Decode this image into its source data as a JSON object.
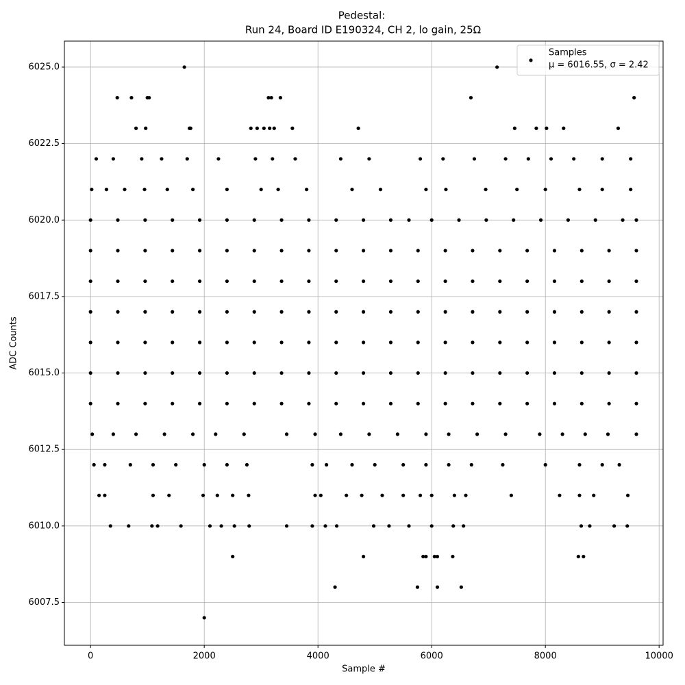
{
  "chart_data": {
    "type": "scatter",
    "title": "Pedestal:",
    "subtitle": "Run 24, Board ID E190324, CH 2, lo gain, 25Ω",
    "x_label": "Sample #",
    "y_label": "ADC Counts",
    "annotation": "μ = 6016.55, σ = 2.42",
    "legend_position": "upper right",
    "grid": true,
    "xlim": [
      -460,
      10070
    ],
    "ylim": [
      6006.1,
      6025.85
    ],
    "xticks": [
      0,
      2000,
      4000,
      6000,
      8000,
      10000
    ],
    "yticks": [
      6007.5,
      {
        "value": 6010,
        "label": "6010.0"
      },
      6012.5,
      {
        "value": 6015,
        "label": "6015.0"
      },
      6017.5,
      {
        "value": 6020,
        "label": "6020.0"
      },
      6022.5,
      {
        "value": 6025,
        "label": "6025.0"
      }
    ],
    "x": [
      1650,
      7150,
      470,
      720,
      1000,
      1030,
      3130,
      3180,
      3340,
      6690,
      9560,
      800,
      970,
      1740,
      1760,
      2820,
      2930,
      3050,
      3150,
      3230,
      3550,
      4710,
      7460,
      7840,
      8020,
      8320,
      9280,
      100,
      400,
      900,
      1250,
      1700,
      2250,
      2900,
      3200,
      3600,
      4400,
      4900,
      5800,
      6200,
      6750,
      7300,
      7700,
      8100,
      8500,
      9000,
      9500,
      20,
      280,
      600,
      950,
      1350,
      1800,
      2400,
      3000,
      3300,
      3800,
      4600,
      5100,
      5900,
      6250,
      6950,
      7500,
      8000,
      8600,
      9000,
      9500,
      0,
      480,
      960,
      1440,
      1920,
      2400,
      2880,
      3360,
      3840,
      4320,
      4800,
      5280,
      5600,
      6000,
      6480,
      6960,
      7440,
      7920,
      8400,
      8880,
      9360,
      9600,
      0,
      480,
      960,
      1440,
      1920,
      2400,
      2880,
      3360,
      3840,
      4320,
      4800,
      5280,
      5760,
      6240,
      6720,
      7200,
      7680,
      8160,
      8640,
      9120,
      9600,
      0,
      480,
      960,
      1440,
      1920,
      2400,
      2880,
      3360,
      3840,
      4320,
      4800,
      5280,
      5760,
      6240,
      6720,
      7200,
      7680,
      8160,
      8640,
      9120,
      9600,
      0,
      480,
      960,
      1440,
      1920,
      2400,
      2880,
      3360,
      3840,
      4320,
      4800,
      5280,
      5760,
      6240,
      6720,
      7200,
      7680,
      8160,
      8640,
      9120,
      9600,
      0,
      480,
      960,
      1440,
      1920,
      2400,
      2880,
      3360,
      3840,
      4320,
      4800,
      5280,
      5760,
      6240,
      6720,
      7200,
      7680,
      8160,
      8640,
      9120,
      9600,
      0,
      480,
      960,
      1440,
      1920,
      2400,
      2880,
      3360,
      3840,
      4320,
      4800,
      5280,
      5760,
      6240,
      6720,
      7200,
      7680,
      8160,
      8640,
      9120,
      9600,
      0,
      480,
      960,
      1440,
      1920,
      2400,
      2880,
      3360,
      3840,
      4320,
      4800,
      5280,
      5760,
      6240,
      6720,
      7200,
      7680,
      8160,
      8640,
      9120,
      9600,
      30,
      400,
      800,
      1300,
      1800,
      2200,
      2700,
      3450,
      3950,
      4400,
      4900,
      5400,
      5900,
      6300,
      6800,
      7300,
      7900,
      8300,
      8700,
      9100,
      9600,
      60,
      250,
      700,
      1100,
      1500,
      2000,
      2400,
      2750,
      3900,
      4150,
      4600,
      5000,
      5500,
      5900,
      6300,
      6700,
      7250,
      8000,
      8600,
      9000,
      9300,
      150,
      250,
      1100,
      1380,
      1980,
      2230,
      2500,
      2780,
      3950,
      4050,
      4500,
      4770,
      5130,
      5500,
      5800,
      6000,
      6400,
      6600,
      7400,
      8250,
      8600,
      8850,
      9450,
      350,
      670,
      1080,
      1180,
      1590,
      2100,
      2300,
      2530,
      2790,
      3450,
      3900,
      4130,
      4330,
      4980,
      5250,
      5600,
      6000,
      6380,
      6560,
      8630,
      8780,
      9210,
      9440,
      2500,
      4800,
      5850,
      5900,
      6050,
      6100,
      6370,
      8580,
      8670,
      4300,
      5750,
      6100,
      6520,
      2000
    ],
    "series": [
      {
        "name": "Samples",
        "color": "#000000",
        "values": [
          6025,
          6025,
          6024,
          6024,
          6024,
          6024,
          6024,
          6024,
          6024,
          6024,
          6024,
          6023,
          6023,
          6023,
          6023,
          6023,
          6023,
          6023,
          6023,
          6023,
          6023,
          6023,
          6023,
          6023,
          6023,
          6023,
          6023,
          6022,
          6022,
          6022,
          6022,
          6022,
          6022,
          6022,
          6022,
          6022,
          6022,
          6022,
          6022,
          6022,
          6022,
          6022,
          6022,
          6022,
          6022,
          6022,
          6022,
          6021,
          6021,
          6021,
          6021,
          6021,
          6021,
          6021,
          6021,
          6021,
          6021,
          6021,
          6021,
          6021,
          6021,
          6021,
          6021,
          6021,
          6021,
          6021,
          6021,
          6020,
          6020,
          6020,
          6020,
          6020,
          6020,
          6020,
          6020,
          6020,
          6020,
          6020,
          6020,
          6020,
          6020,
          6020,
          6020,
          6020,
          6020,
          6020,
          6020,
          6020,
          6020,
          6019,
          6019,
          6019,
          6019,
          6019,
          6019,
          6019,
          6019,
          6019,
          6019,
          6019,
          6019,
          6019,
          6019,
          6019,
          6019,
          6019,
          6019,
          6019,
          6019,
          6019,
          6018,
          6018,
          6018,
          6018,
          6018,
          6018,
          6018,
          6018,
          6018,
          6018,
          6018,
          6018,
          6018,
          6018,
          6018,
          6018,
          6018,
          6018,
          6018,
          6018,
          6018,
          6017,
          6017,
          6017,
          6017,
          6017,
          6017,
          6017,
          6017,
          6017,
          6017,
          6017,
          6017,
          6017,
          6017,
          6017,
          6017,
          6017,
          6017,
          6017,
          6017,
          6017,
          6016,
          6016,
          6016,
          6016,
          6016,
          6016,
          6016,
          6016,
          6016,
          6016,
          6016,
          6016,
          6016,
          6016,
          6016,
          6016,
          6016,
          6016,
          6016,
          6016,
          6016,
          6015,
          6015,
          6015,
          6015,
          6015,
          6015,
          6015,
          6015,
          6015,
          6015,
          6015,
          6015,
          6015,
          6015,
          6015,
          6015,
          6015,
          6015,
          6015,
          6015,
          6015,
          6014,
          6014,
          6014,
          6014,
          6014,
          6014,
          6014,
          6014,
          6014,
          6014,
          6014,
          6014,
          6014,
          6014,
          6014,
          6014,
          6014,
          6014,
          6014,
          6014,
          6014,
          6013,
          6013,
          6013,
          6013,
          6013,
          6013,
          6013,
          6013,
          6013,
          6013,
          6013,
          6013,
          6013,
          6013,
          6013,
          6013,
          6013,
          6013,
          6013,
          6013,
          6013,
          6012,
          6012,
          6012,
          6012,
          6012,
          6012,
          6012,
          6012,
          6012,
          6012,
          6012,
          6012,
          6012,
          6012,
          6012,
          6012,
          6012,
          6012,
          6012,
          6012,
          6012,
          6011,
          6011,
          6011,
          6011,
          6011,
          6011,
          6011,
          6011,
          6011,
          6011,
          6011,
          6011,
          6011,
          6011,
          6011,
          6011,
          6011,
          6011,
          6011,
          6011,
          6011,
          6011,
          6011,
          6010,
          6010,
          6010,
          6010,
          6010,
          6010,
          6010,
          6010,
          6010,
          6010,
          6010,
          6010,
          6010,
          6010,
          6010,
          6010,
          6010,
          6010,
          6010,
          6010,
          6010,
          6010,
          6010,
          6009,
          6009,
          6009,
          6009,
          6009,
          6009,
          6009,
          6009,
          6009,
          6008,
          6008,
          6008,
          6008,
          6007
        ]
      }
    ]
  }
}
